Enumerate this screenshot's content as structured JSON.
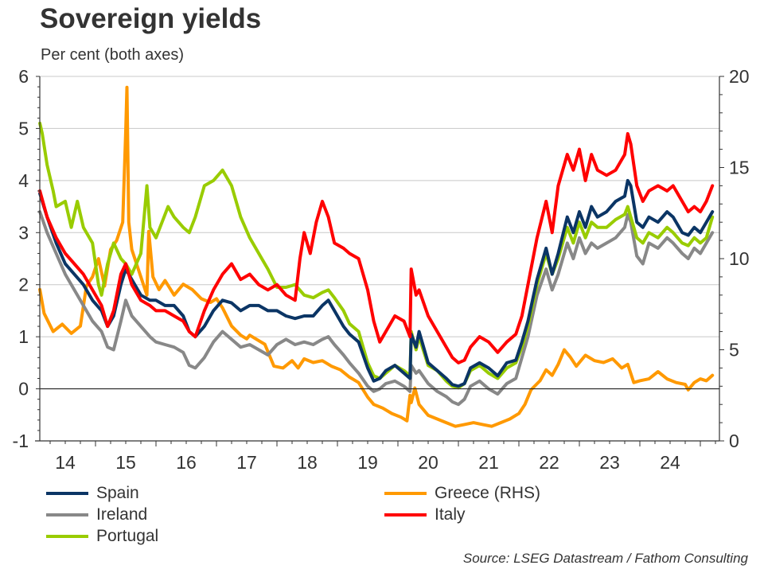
{
  "chart_data": {
    "type": "line",
    "title": "Sovereign yields",
    "subtitle": "Per cent (both axes)",
    "source": "Source: LSEG Datastream / Fathom Consulting",
    "xlabel": "",
    "ylabel_left": "Per cent",
    "ylabel_right": "Per cent",
    "x_range": [
      2013.92,
      2025.3
    ],
    "y_left": {
      "min": -1,
      "max": 6,
      "ticks": [
        -1,
        0,
        1,
        2,
        3,
        4,
        5,
        6
      ],
      "tick_labels": [
        "-1",
        "0",
        "1",
        "2",
        "3",
        "4",
        "5",
        "6"
      ]
    },
    "y_right": {
      "min": 0,
      "max": 20,
      "ticks": [
        0,
        5,
        10,
        15,
        20
      ],
      "tick_labels": [
        "0",
        "5",
        "10",
        "15",
        "20"
      ]
    },
    "x_ticks": [
      {
        "label": "14",
        "year": 2014
      },
      {
        "label": "15",
        "year": 2015
      },
      {
        "label": "16",
        "year": 2016
      },
      {
        "label": "17",
        "year": 2017
      },
      {
        "label": "18",
        "year": 2018
      },
      {
        "label": "19",
        "year": 2019
      },
      {
        "label": "20",
        "year": 2020
      },
      {
        "label": "21",
        "year": 2021
      },
      {
        "label": "22",
        "year": 2022
      },
      {
        "label": "23",
        "year": 2023
      },
      {
        "label": "24",
        "year": 2024
      }
    ],
    "grid": "horizontal",
    "legend_position": "bottom",
    "series": [
      {
        "name": "Spain",
        "label": "Spain",
        "axis": "left",
        "color": "#0b3565",
        "x": [
          2014.08,
          2014.2,
          2014.35,
          2014.5,
          2014.65,
          2014.8,
          2014.95,
          2015.1,
          2015.2,
          2015.3,
          2015.42,
          2015.5,
          2015.6,
          2015.75,
          2015.9,
          2016.0,
          2016.15,
          2016.3,
          2016.45,
          2016.55,
          2016.65,
          2016.8,
          2016.95,
          2017.1,
          2017.25,
          2017.4,
          2017.55,
          2017.7,
          2017.85,
          2018.0,
          2018.15,
          2018.3,
          2018.45,
          2018.6,
          2018.75,
          2018.85,
          2018.95,
          2019.1,
          2019.2,
          2019.35,
          2019.5,
          2019.6,
          2019.7,
          2019.8,
          2019.95,
          2020.1,
          2020.2,
          2020.22,
          2020.3,
          2020.35,
          2020.5,
          2020.65,
          2020.8,
          2020.9,
          2021.0,
          2021.1,
          2021.2,
          2021.35,
          2021.5,
          2021.65,
          2021.8,
          2021.95,
          2022.05,
          2022.15,
          2022.3,
          2022.45,
          2022.55,
          2022.65,
          2022.8,
          2022.9,
          2023.0,
          2023.1,
          2023.2,
          2023.3,
          2023.45,
          2023.6,
          2023.75,
          2023.8,
          2023.85,
          2023.95,
          2024.05,
          2024.15,
          2024.3,
          2024.45,
          2024.55,
          2024.7,
          2024.8,
          2024.9,
          2025.0,
          2025.1,
          2025.2
        ],
        "y": [
          3.75,
          3.3,
          2.8,
          2.4,
          2.2,
          2.0,
          1.7,
          1.5,
          1.2,
          1.4,
          2.0,
          2.3,
          2.1,
          1.8,
          1.7,
          1.7,
          1.6,
          1.6,
          1.4,
          1.1,
          1.0,
          1.2,
          1.5,
          1.7,
          1.65,
          1.5,
          1.6,
          1.6,
          1.5,
          1.5,
          1.4,
          1.35,
          1.4,
          1.4,
          1.6,
          1.7,
          1.5,
          1.2,
          1.05,
          0.9,
          0.4,
          0.15,
          0.2,
          0.35,
          0.45,
          0.3,
          0.2,
          1.05,
          0.8,
          1.1,
          0.5,
          0.35,
          0.2,
          0.08,
          0.05,
          0.1,
          0.4,
          0.5,
          0.4,
          0.25,
          0.5,
          0.55,
          0.9,
          1.3,
          2.1,
          2.7,
          2.2,
          2.6,
          3.3,
          3.0,
          3.4,
          3.1,
          3.5,
          3.3,
          3.4,
          3.6,
          3.7,
          4.0,
          3.9,
          3.2,
          3.1,
          3.3,
          3.2,
          3.4,
          3.3,
          3.0,
          2.95,
          3.1,
          3.0,
          3.2,
          3.4
        ]
      },
      {
        "name": "Ireland",
        "label": "Ireland",
        "axis": "left",
        "color": "#888888",
        "x": [
          2014.08,
          2014.2,
          2014.35,
          2014.5,
          2014.65,
          2014.8,
          2014.95,
          2015.1,
          2015.2,
          2015.3,
          2015.42,
          2015.5,
          2015.6,
          2015.75,
          2015.9,
          2016.0,
          2016.15,
          2016.3,
          2016.45,
          2016.55,
          2016.65,
          2016.8,
          2016.95,
          2017.1,
          2017.25,
          2017.4,
          2017.55,
          2017.7,
          2017.85,
          2018.0,
          2018.15,
          2018.3,
          2018.45,
          2018.6,
          2018.75,
          2018.85,
          2018.95,
          2019.1,
          2019.2,
          2019.35,
          2019.5,
          2019.6,
          2019.7,
          2019.8,
          2019.95,
          2020.1,
          2020.2,
          2020.22,
          2020.3,
          2020.35,
          2020.5,
          2020.65,
          2020.8,
          2020.9,
          2021.0,
          2021.1,
          2021.2,
          2021.35,
          2021.5,
          2021.65,
          2021.8,
          2021.95,
          2022.05,
          2022.15,
          2022.3,
          2022.45,
          2022.55,
          2022.65,
          2022.8,
          2022.9,
          2023.0,
          2023.1,
          2023.2,
          2023.3,
          2023.45,
          2023.6,
          2023.75,
          2023.8,
          2023.85,
          2023.95,
          2024.05,
          2024.15,
          2024.3,
          2024.45,
          2024.55,
          2024.7,
          2024.8,
          2024.9,
          2025.0,
          2025.1,
          2025.2
        ],
        "y": [
          3.4,
          3.0,
          2.6,
          2.2,
          1.9,
          1.6,
          1.3,
          1.1,
          0.8,
          0.75,
          1.3,
          1.7,
          1.4,
          1.2,
          1.0,
          0.9,
          0.85,
          0.8,
          0.7,
          0.45,
          0.4,
          0.6,
          0.9,
          1.1,
          0.95,
          0.8,
          0.85,
          0.75,
          0.65,
          0.85,
          0.95,
          0.85,
          0.9,
          0.85,
          0.95,
          1.0,
          0.85,
          0.65,
          0.5,
          0.3,
          0.05,
          -0.05,
          0.0,
          0.1,
          0.15,
          0.05,
          -0.05,
          0.45,
          0.3,
          0.35,
          0.1,
          -0.05,
          -0.15,
          -0.25,
          -0.3,
          -0.2,
          0.05,
          0.15,
          0.0,
          -0.1,
          0.1,
          0.2,
          0.6,
          1.0,
          1.8,
          2.3,
          1.9,
          2.2,
          2.8,
          2.5,
          2.9,
          2.6,
          2.8,
          2.7,
          2.8,
          2.9,
          3.1,
          3.35,
          3.2,
          2.55,
          2.4,
          2.8,
          2.7,
          2.9,
          2.8,
          2.6,
          2.5,
          2.7,
          2.6,
          2.8,
          3.0
        ]
      },
      {
        "name": "Portugal",
        "label": "Portugal",
        "axis": "left",
        "color": "#99cc00",
        "x": [
          2014.08,
          2014.12,
          2014.2,
          2014.3,
          2014.35,
          2014.5,
          2014.6,
          2014.7,
          2014.8,
          2014.95,
          2015.05,
          2015.1,
          2015.2,
          2015.3,
          2015.42,
          2015.5,
          2015.6,
          2015.75,
          2015.85,
          2015.9,
          2016.0,
          2016.1,
          2016.2,
          2016.3,
          2016.45,
          2016.55,
          2016.65,
          2016.75,
          2016.8,
          2016.95,
          2017.1,
          2017.25,
          2017.4,
          2017.55,
          2017.7,
          2017.85,
          2018.0,
          2018.15,
          2018.3,
          2018.45,
          2018.6,
          2018.75,
          2018.85,
          2018.95,
          2019.1,
          2019.2,
          2019.35,
          2019.5,
          2019.6,
          2019.7,
          2019.8,
          2019.95,
          2020.1,
          2020.2,
          2020.22,
          2020.3,
          2020.35,
          2020.5,
          2020.65,
          2020.8,
          2020.9,
          2021.0,
          2021.1,
          2021.2,
          2021.35,
          2021.5,
          2021.65,
          2021.8,
          2021.95,
          2022.05,
          2022.15,
          2022.3,
          2022.45,
          2022.55,
          2022.65,
          2022.8,
          2022.9,
          2023.0,
          2023.1,
          2023.2,
          2023.3,
          2023.45,
          2023.6,
          2023.75,
          2023.8,
          2023.85,
          2023.95,
          2024.05,
          2024.15,
          2024.3,
          2024.45,
          2024.55,
          2024.7,
          2024.8,
          2024.9,
          2025.0,
          2025.1,
          2025.2
        ],
        "y": [
          5.1,
          4.9,
          4.3,
          3.8,
          3.5,
          3.6,
          3.1,
          3.6,
          3.1,
          2.8,
          2.0,
          1.8,
          2.4,
          2.8,
          2.5,
          2.4,
          2.2,
          2.6,
          3.9,
          3.1,
          2.9,
          3.2,
          3.5,
          3.3,
          3.1,
          3.0,
          3.3,
          3.7,
          3.9,
          4.0,
          4.2,
          3.9,
          3.3,
          2.9,
          2.6,
          2.3,
          1.95,
          1.95,
          2.0,
          1.8,
          1.75,
          1.85,
          1.9,
          1.75,
          1.5,
          1.25,
          1.1,
          0.5,
          0.25,
          0.2,
          0.3,
          0.45,
          0.35,
          0.25,
          1.1,
          0.75,
          1.0,
          0.45,
          0.35,
          0.15,
          0.05,
          0.02,
          0.1,
          0.35,
          0.45,
          0.3,
          0.2,
          0.4,
          0.5,
          0.8,
          1.2,
          2.0,
          2.6,
          2.2,
          2.5,
          3.1,
          2.8,
          3.2,
          2.9,
          3.2,
          3.1,
          3.1,
          3.25,
          3.35,
          3.5,
          3.3,
          2.9,
          2.8,
          3.0,
          2.9,
          3.1,
          3.0,
          2.8,
          2.75,
          2.9,
          2.8,
          2.9,
          3.3
        ]
      },
      {
        "name": "Greece",
        "label": "Greece (RHS)",
        "axis": "right",
        "color": "#ff9900",
        "x": [
          2014.08,
          2014.15,
          2014.3,
          2014.45,
          2014.6,
          2014.75,
          2014.85,
          2014.95,
          2015.05,
          2015.15,
          2015.25,
          2015.35,
          2015.45,
          2015.5,
          2015.52,
          2015.55,
          2015.6,
          2015.7,
          2015.85,
          2015.88,
          2015.95,
          2016.05,
          2016.15,
          2016.3,
          2016.45,
          2016.6,
          2016.75,
          2016.9,
          2017.0,
          2017.1,
          2017.25,
          2017.4,
          2017.5,
          2017.55,
          2017.65,
          2017.8,
          2017.95,
          2018.1,
          2018.25,
          2018.35,
          2018.45,
          2018.6,
          2018.75,
          2018.9,
          2019.05,
          2019.2,
          2019.35,
          2019.5,
          2019.6,
          2019.75,
          2019.9,
          2020.05,
          2020.15,
          2020.2,
          2020.22,
          2020.28,
          2020.35,
          2020.5,
          2020.65,
          2020.8,
          2020.95,
          2021.1,
          2021.25,
          2021.4,
          2021.55,
          2021.7,
          2021.85,
          2022.0,
          2022.1,
          2022.2,
          2022.35,
          2022.45,
          2022.55,
          2022.65,
          2022.75,
          2022.85,
          2022.95,
          2023.1,
          2023.25,
          2023.4,
          2023.55,
          2023.7,
          2023.8,
          2023.9,
          2024.0,
          2024.15,
          2024.3,
          2024.45,
          2024.6,
          2024.75,
          2024.8,
          2024.9,
          2025.0,
          2025.1,
          2025.2
        ],
        "y": [
          8.3,
          7.0,
          6.0,
          6.4,
          5.9,
          6.3,
          8.5,
          9.0,
          10.0,
          8.5,
          10.5,
          11.0,
          12.0,
          17.0,
          19.4,
          12.0,
          10.5,
          9.5,
          8.0,
          11.5,
          9.0,
          8.3,
          8.8,
          8.0,
          8.6,
          8.3,
          7.8,
          7.6,
          7.8,
          7.3,
          6.3,
          5.8,
          5.6,
          5.8,
          5.6,
          5.3,
          4.1,
          4.0,
          4.4,
          4.0,
          4.5,
          4.3,
          4.4,
          4.1,
          3.9,
          3.5,
          3.2,
          2.4,
          2.0,
          1.8,
          1.5,
          1.3,
          1.1,
          2.5,
          2.1,
          2.9,
          2.0,
          1.4,
          1.2,
          1.0,
          0.8,
          0.9,
          1.0,
          0.9,
          0.8,
          1.0,
          1.2,
          1.5,
          2.0,
          2.8,
          3.3,
          3.9,
          3.6,
          4.2,
          5.0,
          4.6,
          4.1,
          4.7,
          4.4,
          4.3,
          4.5,
          4.0,
          4.2,
          3.2,
          3.3,
          3.4,
          3.8,
          3.4,
          3.2,
          3.1,
          2.8,
          3.2,
          3.4,
          3.3,
          3.6
        ]
      },
      {
        "name": "Italy",
        "label": "Italy",
        "axis": "left",
        "color": "#ff0000",
        "x": [
          2014.08,
          2014.2,
          2014.35,
          2014.5,
          2014.65,
          2014.8,
          2014.95,
          2015.1,
          2015.2,
          2015.3,
          2015.42,
          2015.5,
          2015.6,
          2015.75,
          2015.9,
          2016.0,
          2016.15,
          2016.3,
          2016.45,
          2016.55,
          2016.65,
          2016.8,
          2016.95,
          2017.1,
          2017.25,
          2017.4,
          2017.55,
          2017.7,
          2017.85,
          2018.0,
          2018.15,
          2018.3,
          2018.38,
          2018.45,
          2018.55,
          2018.65,
          2018.75,
          2018.85,
          2018.95,
          2019.1,
          2019.2,
          2019.35,
          2019.5,
          2019.6,
          2019.7,
          2019.8,
          2019.95,
          2020.1,
          2020.2,
          2020.22,
          2020.3,
          2020.35,
          2020.5,
          2020.65,
          2020.8,
          2020.9,
          2021.0,
          2021.1,
          2021.2,
          2021.35,
          2021.5,
          2021.65,
          2021.8,
          2021.95,
          2022.05,
          2022.15,
          2022.3,
          2022.45,
          2022.55,
          2022.65,
          2022.8,
          2022.9,
          2023.0,
          2023.1,
          2023.2,
          2023.3,
          2023.45,
          2023.6,
          2023.75,
          2023.8,
          2023.85,
          2023.95,
          2024.05,
          2024.15,
          2024.3,
          2024.45,
          2024.55,
          2024.7,
          2024.8,
          2024.9,
          2025.0,
          2025.1,
          2025.2
        ],
        "y": [
          3.8,
          3.3,
          2.9,
          2.6,
          2.4,
          2.2,
          1.9,
          1.6,
          1.2,
          1.5,
          2.2,
          2.4,
          2.0,
          1.7,
          1.6,
          1.5,
          1.5,
          1.4,
          1.3,
          1.1,
          1.0,
          1.5,
          1.9,
          2.2,
          2.4,
          2.1,
          2.2,
          2.0,
          1.9,
          2.0,
          1.8,
          1.7,
          2.5,
          3.0,
          2.6,
          3.2,
          3.6,
          3.3,
          2.8,
          2.7,
          2.6,
          2.5,
          1.9,
          1.3,
          0.9,
          1.1,
          1.4,
          1.3,
          1.0,
          2.3,
          1.8,
          1.9,
          1.4,
          1.1,
          0.8,
          0.6,
          0.5,
          0.55,
          0.8,
          1.0,
          0.9,
          0.7,
          0.9,
          1.05,
          1.4,
          2.0,
          2.9,
          3.6,
          3.0,
          3.9,
          4.5,
          4.2,
          4.6,
          4.0,
          4.5,
          4.2,
          4.1,
          4.2,
          4.5,
          4.9,
          4.7,
          3.9,
          3.6,
          3.8,
          3.9,
          3.8,
          3.9,
          3.6,
          3.4,
          3.5,
          3.4,
          3.6,
          3.9
        ]
      }
    ]
  }
}
